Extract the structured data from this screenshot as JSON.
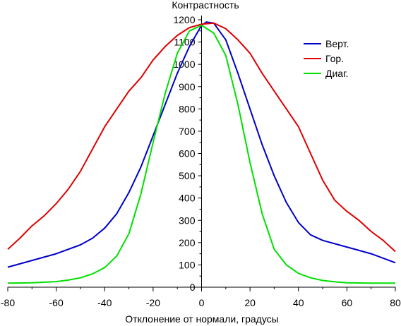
{
  "chart_data": {
    "type": "line",
    "title": "Контрастность",
    "xlabel": "Отклонение от нормали, градусы",
    "ylabel": "",
    "xlim": [
      -80,
      80
    ],
    "ylim": [
      0,
      1200
    ],
    "xticks": [
      -80,
      -60,
      -40,
      -20,
      0,
      20,
      40,
      60,
      80
    ],
    "yticks": [
      0,
      100,
      200,
      300,
      400,
      500,
      600,
      700,
      800,
      900,
      1000,
      1100,
      1200
    ],
    "grid": false,
    "legend": "top-right",
    "series": [
      {
        "name": "Верт.",
        "color": "#0000c8",
        "x": [
          -80,
          -70,
          -60,
          -50,
          -45,
          -40,
          -35,
          -30,
          -25,
          -20,
          -15,
          -10,
          -5,
          0,
          2,
          5,
          10,
          15,
          20,
          25,
          30,
          35,
          40,
          45,
          50,
          60,
          70,
          80
        ],
        "values": [
          90,
          120,
          150,
          190,
          220,
          265,
          330,
          425,
          540,
          680,
          820,
          960,
          1080,
          1175,
          1190,
          1185,
          1110,
          960,
          800,
          640,
          500,
          380,
          290,
          235,
          210,
          180,
          150,
          110
        ]
      },
      {
        "name": "Гор.",
        "color": "#e00000",
        "x": [
          -80,
          -75,
          -70,
          -65,
          -60,
          -55,
          -50,
          -45,
          -40,
          -35,
          -30,
          -25,
          -20,
          -15,
          -10,
          -5,
          0,
          5,
          10,
          15,
          20,
          25,
          30,
          35,
          40,
          45,
          50,
          55,
          60,
          65,
          70,
          75,
          80
        ],
        "values": [
          170,
          220,
          275,
          320,
          375,
          440,
          520,
          620,
          720,
          800,
          880,
          940,
          1020,
          1080,
          1130,
          1165,
          1180,
          1185,
          1160,
          1110,
          1050,
          960,
          880,
          800,
          720,
          600,
          480,
          390,
          340,
          300,
          250,
          210,
          160
        ]
      },
      {
        "name": "Диаг.",
        "color": "#00e000",
        "x": [
          -80,
          -70,
          -60,
          -55,
          -50,
          -45,
          -40,
          -35,
          -30,
          -25,
          -20,
          -15,
          -10,
          -5,
          0,
          5,
          10,
          15,
          20,
          25,
          30,
          35,
          40,
          45,
          50,
          55,
          60,
          70,
          80
        ],
        "values": [
          18,
          20,
          25,
          32,
          42,
          60,
          88,
          140,
          240,
          420,
          650,
          870,
          1050,
          1150,
          1175,
          1140,
          1040,
          820,
          560,
          330,
          170,
          100,
          62,
          42,
          30,
          24,
          20,
          18,
          18
        ]
      }
    ]
  }
}
